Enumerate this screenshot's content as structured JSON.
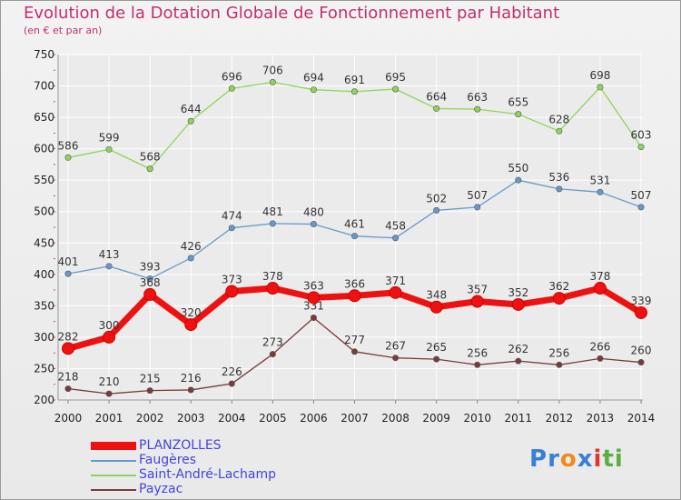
{
  "title": "Evolution de la Dotation Globale de Fonctionnement par Habitant",
  "subtitle": "(en € et par an)",
  "logo": {
    "text": "Proxiti",
    "letters": [
      "P",
      "r",
      "o",
      "x",
      "i",
      "t",
      "i"
    ],
    "colors": [
      "#3a7fd5",
      "#3a7fd5",
      "#f08a1e",
      "#3a7fd5",
      "#e3342f",
      "#58b044",
      "#58b044"
    ]
  },
  "chart_data": {
    "type": "line",
    "x": [
      "2000",
      "2001",
      "2002",
      "2003",
      "2004",
      "2005",
      "2006",
      "2007",
      "2008",
      "2009",
      "2010",
      "2011",
      "2012",
      "2013",
      "2014"
    ],
    "ylim": [
      200,
      750
    ],
    "yticks": [
      200,
      250,
      300,
      350,
      400,
      450,
      500,
      550,
      600,
      650,
      700,
      750
    ],
    "grid": true,
    "legend_position": "bottom-left",
    "series": [
      {
        "name": "Saint-André-Lachamp",
        "color": "#8fd45a",
        "values": [
          586,
          599,
          568,
          644,
          696,
          706,
          694,
          691,
          695,
          664,
          663,
          655,
          628,
          698,
          603
        ]
      },
      {
        "name": "Faugères",
        "color": "#6699cc",
        "values": [
          401,
          413,
          393,
          426,
          474,
          481,
          480,
          461,
          458,
          502,
          507,
          550,
          536,
          531,
          507
        ]
      },
      {
        "name": "Payzac",
        "color": "#7a3b3b",
        "values": [
          218,
          210,
          215,
          216,
          226,
          273,
          331,
          277,
          267,
          265,
          256,
          262,
          256,
          266,
          260
        ]
      },
      {
        "name": "PLANZOLLES",
        "color": "#ee1111",
        "values": [
          282,
          300,
          368,
          320,
          373,
          378,
          363,
          366,
          371,
          348,
          357,
          352,
          362,
          378,
          339
        ]
      }
    ],
    "legend_order": [
      "PLANZOLLES",
      "Faugères",
      "Saint-André-Lachamp",
      "Payzac"
    ]
  }
}
